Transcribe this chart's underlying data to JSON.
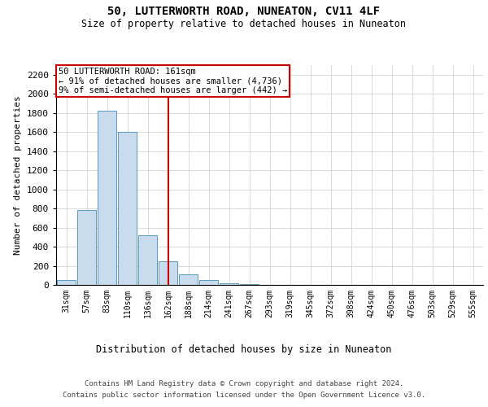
{
  "title1": "50, LUTTERWORTH ROAD, NUNEATON, CV11 4LF",
  "title2": "Size of property relative to detached houses in Nuneaton",
  "xlabel": "Distribution of detached houses by size in Nuneaton",
  "ylabel": "Number of detached properties",
  "footer1": "Contains HM Land Registry data © Crown copyright and database right 2024.",
  "footer2": "Contains public sector information licensed under the Open Government Licence v3.0.",
  "annotation_line1": "50 LUTTERWORTH ROAD: 161sqm",
  "annotation_line2": "← 91% of detached houses are smaller (4,736)",
  "annotation_line3": "9% of semi-detached houses are larger (442) →",
  "property_size_index": 5,
  "bar_color": "#c8dced",
  "bar_edge_color": "#5b9bbf",
  "marker_line_color": "#cc0000",
  "categories": [
    "31sqm",
    "57sqm",
    "83sqm",
    "110sqm",
    "136sqm",
    "162sqm",
    "188sqm",
    "214sqm",
    "241sqm",
    "267sqm",
    "293sqm",
    "319sqm",
    "345sqm",
    "372sqm",
    "398sqm",
    "424sqm",
    "450sqm",
    "476sqm",
    "503sqm",
    "529sqm",
    "555sqm"
  ],
  "values": [
    50,
    780,
    1820,
    1600,
    520,
    250,
    110,
    50,
    20,
    5,
    2,
    1,
    0,
    0,
    0,
    0,
    0,
    0,
    0,
    0,
    0
  ],
  "ylim": [
    0,
    2300
  ],
  "yticks": [
    0,
    200,
    400,
    600,
    800,
    1000,
    1200,
    1400,
    1600,
    1800,
    2000,
    2200
  ]
}
